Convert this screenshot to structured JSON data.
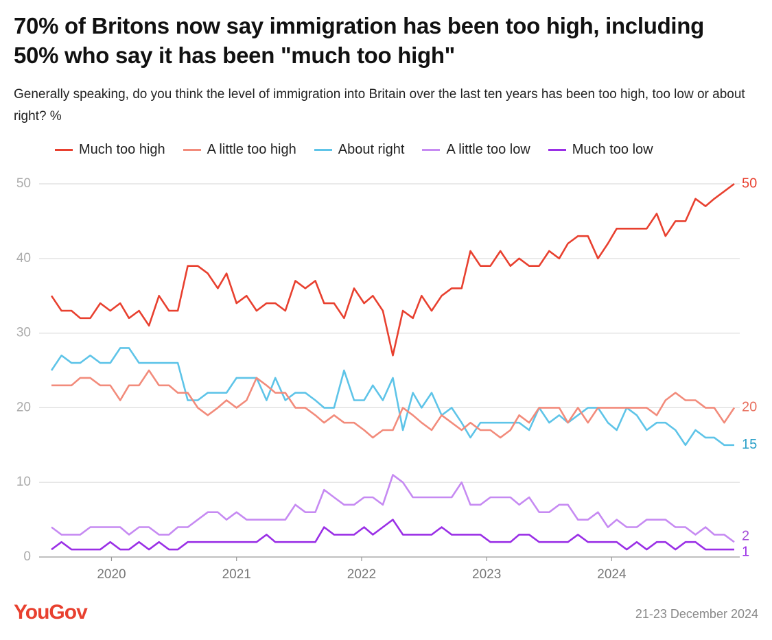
{
  "chart_data": {
    "type": "line",
    "title": "70% of Britons now say immigration has been too high, including 50% who say it has been \"much too high\"",
    "subtitle": "Generally speaking, do you think the level of immigration into Britain over the last ten years has been too high, too low or about right? %",
    "source": "YouGov",
    "note": "21-23 December 2024",
    "x": [
      2019.52,
      2019.6,
      2019.68,
      2019.75,
      2019.83,
      2019.91,
      2019.99,
      2020.07,
      2020.14,
      2020.22,
      2020.3,
      2020.38,
      2020.46,
      2020.53,
      2020.61,
      2020.69,
      2020.77,
      2020.85,
      2020.92,
      2021.0,
      2021.08,
      2021.16,
      2021.24,
      2021.31,
      2021.39,
      2021.47,
      2021.55,
      2021.63,
      2021.7,
      2021.78,
      2021.86,
      2021.94,
      2022.02,
      2022.09,
      2022.17,
      2022.25,
      2022.33,
      2022.41,
      2022.48,
      2022.56,
      2022.64,
      2022.72,
      2022.8,
      2022.87,
      2022.95,
      2023.03,
      2023.11,
      2023.19,
      2023.26,
      2023.34,
      2023.42,
      2023.5,
      2023.58,
      2023.65,
      2023.73,
      2023.81,
      2023.89,
      2023.97,
      2024.04,
      2024.12,
      2024.2,
      2024.28,
      2024.36,
      2024.43,
      2024.51,
      2024.59,
      2024.67,
      2024.75,
      2024.82,
      2024.9,
      2024.98
    ],
    "xlim": [
      2019.52,
      2024.98
    ],
    "xticks": [
      2020,
      2021,
      2022,
      2023,
      2024
    ],
    "ylim": [
      0,
      50
    ],
    "yticks": [
      0,
      10,
      20,
      30,
      40,
      50
    ],
    "grid": true,
    "series": [
      {
        "name": "Much too high",
        "color": "#e8402f",
        "values": [
          35,
          33,
          33,
          32,
          32,
          34,
          33,
          34,
          32,
          33,
          31,
          35,
          33,
          33,
          39,
          39,
          38,
          36,
          38,
          34,
          35,
          33,
          34,
          34,
          33,
          37,
          36,
          37,
          34,
          34,
          32,
          36,
          34,
          35,
          33,
          27,
          33,
          32,
          35,
          33,
          35,
          36,
          36,
          41,
          39,
          39,
          41,
          39,
          40,
          39,
          39,
          41,
          40,
          42,
          43,
          43,
          40,
          42,
          44,
          44,
          44,
          44,
          46,
          43,
          45,
          45,
          48,
          47,
          48,
          49,
          50
        ]
      },
      {
        "name": "A little too high",
        "color": "#f28b7b",
        "values": [
          23,
          23,
          23,
          24,
          24,
          23,
          23,
          21,
          23,
          23,
          25,
          23,
          23,
          22,
          22,
          20,
          19,
          20,
          21,
          20,
          21,
          24,
          23,
          22,
          22,
          20,
          20,
          19,
          18,
          19,
          18,
          18,
          17,
          16,
          17,
          17,
          20,
          19,
          18,
          17,
          19,
          18,
          17,
          18,
          17,
          17,
          16,
          17,
          19,
          18,
          20,
          20,
          20,
          18,
          20,
          18,
          20,
          20,
          20,
          20,
          20,
          20,
          19,
          21,
          22,
          21,
          21,
          20,
          20,
          18,
          20
        ]
      },
      {
        "name": "About right",
        "color": "#5ec4e8",
        "values": [
          25,
          27,
          26,
          26,
          27,
          26,
          26,
          28,
          28,
          26,
          26,
          26,
          26,
          26,
          21,
          21,
          22,
          22,
          22,
          24,
          24,
          24,
          21,
          24,
          21,
          22,
          22,
          21,
          20,
          20,
          25,
          21,
          21,
          23,
          21,
          24,
          17,
          22,
          20,
          22,
          19,
          20,
          18,
          16,
          18,
          18,
          18,
          18,
          18,
          17,
          20,
          18,
          19,
          18,
          19,
          20,
          20,
          18,
          17,
          20,
          19,
          17,
          18,
          18,
          17,
          15,
          17,
          16,
          16,
          15,
          15
        ]
      },
      {
        "name": "A little too low",
        "color": "#c68af2",
        "values": [
          4,
          3,
          3,
          3,
          4,
          4,
          4,
          4,
          3,
          4,
          4,
          3,
          3,
          4,
          4,
          5,
          6,
          6,
          5,
          6,
          5,
          5,
          5,
          5,
          5,
          7,
          6,
          6,
          9,
          8,
          7,
          7,
          8,
          8,
          7,
          11,
          10,
          8,
          8,
          8,
          8,
          8,
          10,
          7,
          7,
          8,
          8,
          8,
          7,
          8,
          6,
          6,
          7,
          7,
          5,
          5,
          6,
          4,
          5,
          4,
          4,
          5,
          5,
          5,
          4,
          4,
          3,
          4,
          3,
          3,
          2
        ]
      },
      {
        "name": "Much too low",
        "color": "#9a2fe6",
        "values": [
          1,
          2,
          1,
          1,
          1,
          1,
          2,
          1,
          1,
          2,
          1,
          2,
          1,
          1,
          2,
          2,
          2,
          2,
          2,
          2,
          2,
          2,
          3,
          2,
          2,
          2,
          2,
          2,
          4,
          3,
          3,
          3,
          4,
          3,
          4,
          5,
          3,
          3,
          3,
          3,
          4,
          3,
          3,
          3,
          3,
          2,
          2,
          2,
          3,
          3,
          2,
          2,
          2,
          2,
          3,
          2,
          2,
          2,
          2,
          1,
          2,
          1,
          2,
          2,
          1,
          2,
          2,
          1,
          1,
          1,
          1
        ]
      }
    ]
  }
}
